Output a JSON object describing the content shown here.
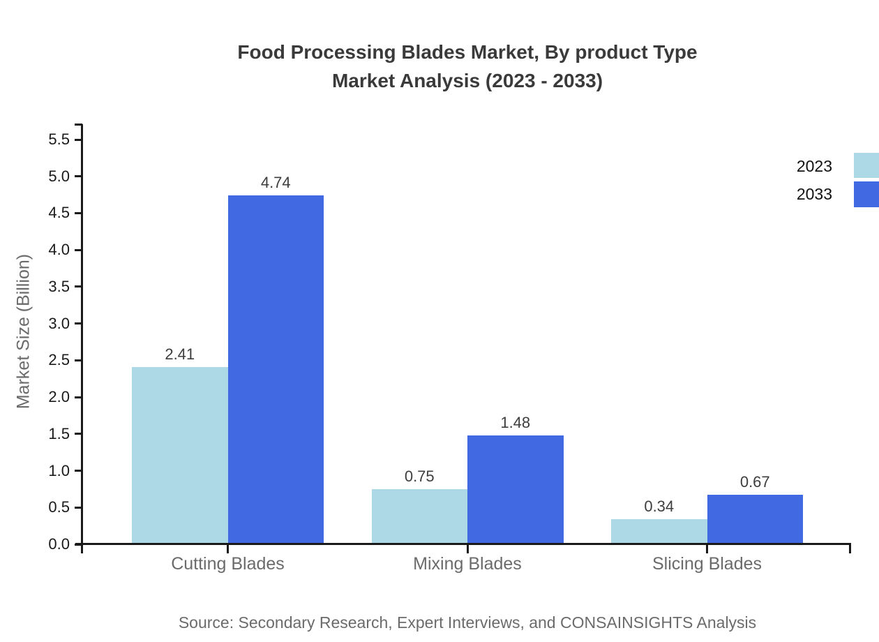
{
  "colors": {
    "background": "#ffffff",
    "bar_2023": "#ADD8E6",
    "bar_2033": "#4169E1",
    "title_text": "#3a3a3a",
    "axis_tick_text": "#1a1a1a",
    "muted_text": "#6b6b6b",
    "value_label_text": "#3d3d3d"
  },
  "chart_data": {
    "type": "bar",
    "title": "Food Processing Blades Market, By product Type Market Analysis (2023 - 2033)",
    "title_lines": [
      "Food Processing Blades Market, By product Type",
      "Market Analysis (2023 - 2033)"
    ],
    "ylabel": "Market Size (Billion)",
    "xlabel": "",
    "categories": [
      "Cutting Blades",
      "Mixing Blades",
      "Slicing Blades"
    ],
    "series": [
      {
        "name": "2023",
        "color": "#ADD8E6",
        "values": [
          2.41,
          0.75,
          0.34
        ]
      },
      {
        "name": "2033",
        "color": "#4169E1",
        "values": [
          4.74,
          1.48,
          0.67
        ]
      }
    ],
    "value_labels": [
      [
        "2.41",
        "0.75",
        "0.34"
      ],
      [
        "4.74",
        "1.48",
        "0.67"
      ]
    ],
    "ylim": [
      0,
      5.5
    ],
    "ytick_values": [
      0,
      0.5,
      1,
      1.5,
      2,
      2.5,
      3,
      3.5,
      4,
      4.5,
      5,
      5.5
    ],
    "ytick_labels": [
      "0.0",
      "0.5",
      "1.0",
      "1.5",
      "2.0",
      "2.5",
      "3.0",
      "3.5",
      "4.0",
      "4.5",
      "5.0",
      "5.5"
    ],
    "grid": false,
    "legend_position": "upper right",
    "legend": [
      {
        "label": "2023",
        "color": "#ADD8E6"
      },
      {
        "label": "2033",
        "color": "#4169E1"
      }
    ],
    "source": "Source: Secondary Research, Expert Interviews, and CONSAINSIGHTS Analysis"
  }
}
